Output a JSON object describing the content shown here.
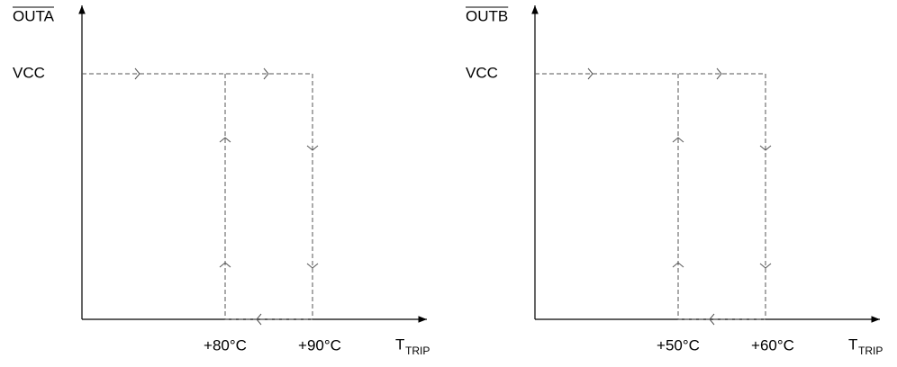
{
  "panels": [
    {
      "output": "OUTA",
      "level": "VCC",
      "low_threshold": "+80°C",
      "high_threshold": "+90°C",
      "x_label": "T",
      "x_label_sub": "TRIP"
    },
    {
      "output": "OUTB",
      "level": "VCC",
      "low_threshold": "+50°C",
      "high_threshold": "+60°C",
      "x_label": "T",
      "x_label_sub": "TRIP"
    }
  ]
}
